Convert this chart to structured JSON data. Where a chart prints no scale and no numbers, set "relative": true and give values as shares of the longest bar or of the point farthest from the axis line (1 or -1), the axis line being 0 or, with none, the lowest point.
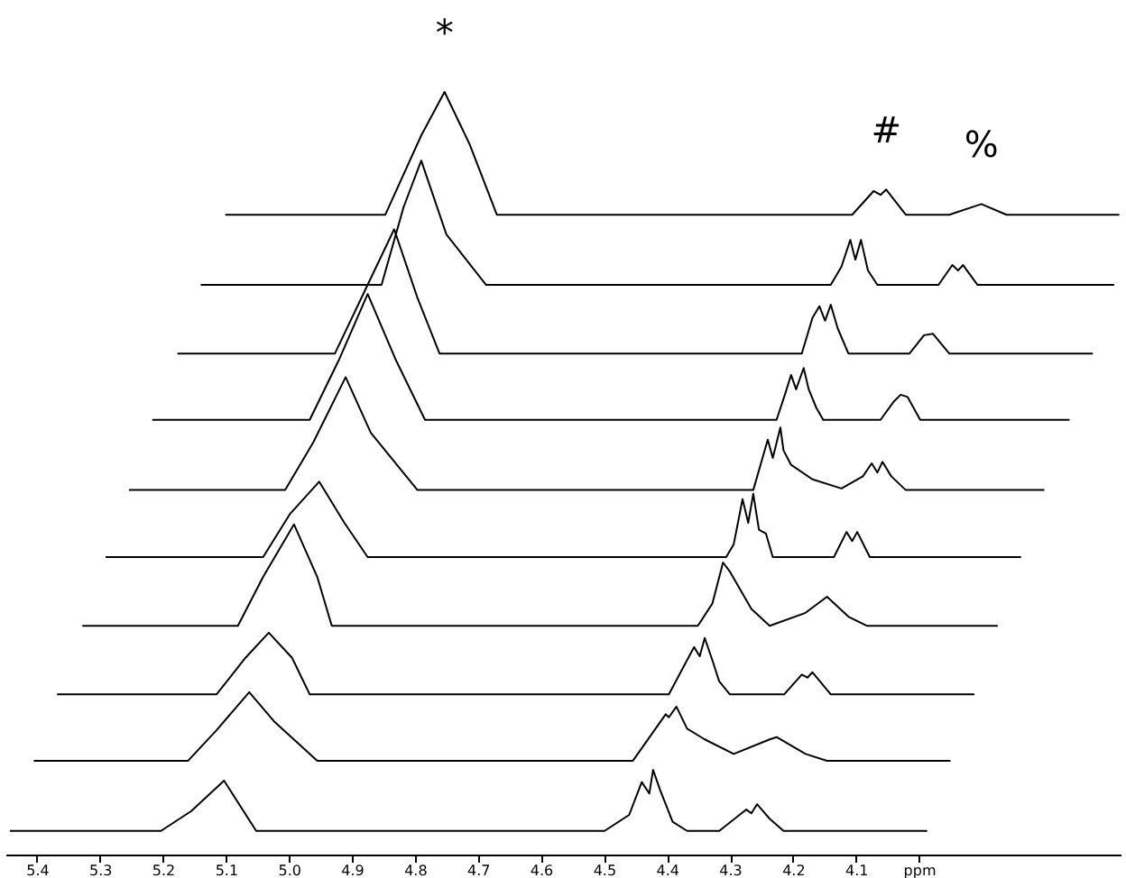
{
  "chart_data": {
    "type": "line",
    "relative": true,
    "grid": false,
    "xlim": [
      5.45,
      3.68
    ],
    "xticks": [
      5.4,
      5.3,
      5.2,
      5.1,
      {
        "value": 5.0,
        "label": "5.0"
      },
      4.9,
      4.8,
      4.7,
      4.6,
      4.5,
      4.4,
      4.3,
      4.2,
      4.1,
      {
        "value": 4.0,
        "label": "ppm"
      }
    ],
    "tick_labels": "x",
    "annotations": [
      {
        "text": "*",
        "x": 4.753,
        "y": 1.0
      },
      {
        "text": "#",
        "x": 4.052,
        "y": 0.872
      },
      {
        "text": "%",
        "x": 3.901,
        "y": 0.853
      }
    ],
    "series": [
      {
        "color": "#000000",
        "x": [
          5.443,
          5.203,
          5.155,
          5.103,
          5.052,
          4.499,
          4.46,
          4.44,
          4.428,
          4.422,
          4.411,
          4.391,
          4.368,
          4.317,
          4.274,
          4.266,
          4.257,
          4.237,
          4.215,
          3.987
        ],
        "values": [
          0.031,
          0.031,
          0.057,
          0.097,
          0.031,
          0.031,
          0.052,
          0.095,
          0.08,
          0.111,
          0.085,
          0.043,
          0.031,
          0.031,
          0.059,
          0.054,
          0.066,
          0.047,
          0.031,
          0.031
        ]
      },
      {
        "color": "#000000",
        "x": [
          5.405,
          5.16,
          5.115,
          5.063,
          5.024,
          4.955,
          4.454,
          4.402,
          4.397,
          4.385,
          4.368,
          4.34,
          4.294,
          4.237,
          4.226,
          4.18,
          4.146,
          3.95
        ],
        "values": [
          0.123,
          0.123,
          0.163,
          0.213,
          0.175,
          0.123,
          0.123,
          0.184,
          0.18,
          0.194,
          0.165,
          0.151,
          0.132,
          0.151,
          0.154,
          0.132,
          0.123,
          0.123
        ]
      },
      {
        "color": "#000000",
        "x": [
          5.368,
          5.115,
          5.069,
          5.032,
          4.995,
          4.967,
          4.397,
          4.357,
          4.348,
          4.34,
          4.328,
          4.317,
          4.3,
          4.214,
          4.186,
          4.177,
          4.169,
          4.14,
          3.912
        ],
        "values": [
          0.21,
          0.21,
          0.258,
          0.291,
          0.258,
          0.21,
          0.21,
          0.272,
          0.26,
          0.284,
          0.255,
          0.227,
          0.21,
          0.21,
          0.236,
          0.232,
          0.239,
          0.21,
          0.21
        ]
      },
      {
        "color": "#000000",
        "x": [
          5.328,
          5.081,
          5.041,
          4.992,
          4.955,
          4.932,
          4.351,
          4.328,
          4.311,
          4.3,
          4.266,
          4.237,
          4.18,
          4.146,
          4.112,
          4.083,
          3.875
        ],
        "values": [
          0.3,
          0.3,
          0.364,
          0.433,
          0.364,
          0.3,
          0.3,
          0.329,
          0.383,
          0.371,
          0.322,
          0.3,
          0.317,
          0.338,
          0.312,
          0.3,
          0.3
        ]
      },
      {
        "color": "#000000",
        "x": [
          5.291,
          5.041,
          4.998,
          4.952,
          4.912,
          4.875,
          4.306,
          4.294,
          4.28,
          4.271,
          4.263,
          4.254,
          4.243,
          4.232,
          4.135,
          4.115,
          4.106,
          4.098,
          4.078,
          3.838
        ],
        "values": [
          0.39,
          0.39,
          0.447,
          0.489,
          0.435,
          0.39,
          0.39,
          0.407,
          0.466,
          0.435,
          0.473,
          0.426,
          0.421,
          0.39,
          0.39,
          0.423,
          0.411,
          0.423,
          0.39,
          0.39
        ]
      },
      {
        "color": "#000000",
        "x": [
          5.254,
          5.006,
          4.961,
          4.91,
          4.87,
          4.796,
          4.263,
          4.24,
          4.232,
          4.22,
          4.215,
          4.203,
          4.169,
          4.123,
          4.089,
          4.075,
          4.066,
          4.058,
          4.044,
          4.021,
          3.801
        ],
        "values": [
          0.478,
          0.478,
          0.541,
          0.626,
          0.553,
          0.478,
          0.478,
          0.544,
          0.52,
          0.56,
          0.53,
          0.511,
          0.492,
          0.48,
          0.496,
          0.513,
          0.501,
          0.515,
          0.496,
          0.478,
          0.478
        ]
      },
      {
        "color": "#000000",
        "x": [
          5.217,
          4.967,
          4.921,
          4.875,
          4.83,
          4.784,
          4.226,
          4.212,
          4.203,
          4.195,
          4.183,
          4.175,
          4.163,
          4.152,
          4.061,
          4.041,
          4.029,
          4.018,
          3.998,
          3.761
        ],
        "values": [
          0.57,
          0.57,
          0.648,
          0.735,
          0.648,
          0.57,
          0.57,
          0.605,
          0.629,
          0.61,
          0.638,
          0.61,
          0.586,
          0.57,
          0.57,
          0.593,
          0.603,
          0.6,
          0.57,
          0.57
        ]
      },
      {
        "color": "#000000",
        "x": [
          5.177,
          4.927,
          4.878,
          4.833,
          4.796,
          4.761,
          4.186,
          4.169,
          4.158,
          4.149,
          4.14,
          4.129,
          4.112,
          4.015,
          3.992,
          3.978,
          3.952,
          3.724
        ],
        "values": [
          0.657,
          0.657,
          0.742,
          0.82,
          0.73,
          0.657,
          0.657,
          0.704,
          0.719,
          0.7,
          0.721,
          0.69,
          0.657,
          0.657,
          0.681,
          0.683,
          0.657,
          0.657
        ]
      },
      {
        "color": "#000000",
        "x": [
          5.14,
          4.853,
          4.818,
          4.79,
          4.75,
          4.687,
          4.14,
          4.123,
          4.109,
          4.101,
          4.092,
          4.081,
          4.066,
          3.969,
          3.947,
          3.938,
          3.93,
          3.907,
          3.69
        ],
        "values": [
          0.747,
          0.747,
          0.849,
          0.91,
          0.813,
          0.747,
          0.747,
          0.771,
          0.806,
          0.78,
          0.806,
          0.766,
          0.747,
          0.747,
          0.773,
          0.766,
          0.773,
          0.747,
          0.747
        ]
      },
      {
        "color": "#000000",
        "x": [
          5.101,
          4.847,
          4.79,
          4.753,
          4.713,
          4.67,
          4.106,
          4.072,
          4.061,
          4.052,
          4.021,
          3.952,
          3.901,
          3.861,
          3.682
        ],
        "values": [
          0.839,
          0.839,
          0.943,
          1.0,
          0.931,
          0.839,
          0.839,
          0.87,
          0.865,
          0.872,
          0.839,
          0.839,
          0.853,
          0.839,
          0.839
        ]
      }
    ]
  }
}
